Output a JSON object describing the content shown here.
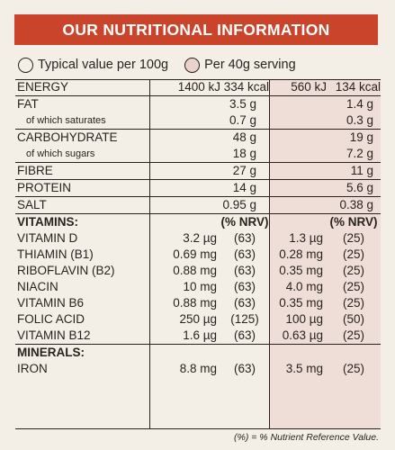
{
  "header": {
    "title": "OUR NUTRITIONAL INFORMATION"
  },
  "legend": {
    "per100": "Typical value per 100g",
    "serving": "Per 40g serving"
  },
  "rows": [
    {
      "kind": "energy",
      "label": "ENERGY",
      "v100a": "1400 kJ",
      "v100b": "334 kcal",
      "vsa": "560 kJ",
      "vsb": "134 kcal",
      "sep": false
    },
    {
      "kind": "main",
      "label": "FAT",
      "v100": "3.5 g",
      "vs": "1.4 g",
      "sep": true
    },
    {
      "kind": "sub",
      "label": "of which saturates",
      "v100": "0.7 g",
      "vs": "0.3 g",
      "sep": false
    },
    {
      "kind": "main",
      "label": "CARBOHYDRATE",
      "v100": "48 g",
      "vs": "19 g",
      "sep": true
    },
    {
      "kind": "sub",
      "label": "of which sugars",
      "v100": "18 g",
      "vs": "7.2 g",
      "sep": false
    },
    {
      "kind": "main",
      "label": "FIBRE",
      "v100": "27 g",
      "vs": "11 g",
      "sep": true
    },
    {
      "kind": "main",
      "label": "PROTEIN",
      "v100": "14 g",
      "vs": "5.6 g",
      "sep": true
    },
    {
      "kind": "main",
      "label": "SALT",
      "v100": "0.95 g",
      "vs": "0.38 g",
      "sep": true
    },
    {
      "kind": "section",
      "label": "VITAMINS:",
      "nrv100": "(% NRV)",
      "nrvs": "(% NRV)",
      "sep": true
    },
    {
      "kind": "vit",
      "label": "VITAMIN D",
      "v100": "3.2 µg",
      "p100": "(63)",
      "vs": "1.3 µg",
      "ps": "(25)",
      "sep": false
    },
    {
      "kind": "vit",
      "label": "THIAMIN (B1)",
      "v100": "0.69 mg",
      "p100": "(63)",
      "vs": "0.28 mg",
      "ps": "(25)",
      "sep": false
    },
    {
      "kind": "vit",
      "label": "RIBOFLAVIN (B2)",
      "v100": "0.88 mg",
      "p100": "(63)",
      "vs": "0.35 mg",
      "ps": "(25)",
      "sep": false
    },
    {
      "kind": "vit",
      "label": "NIACIN",
      "v100": "10 mg",
      "p100": "(63)",
      "vs": "4.0 mg",
      "ps": "(25)",
      "sep": false
    },
    {
      "kind": "vit",
      "label": "VITAMIN B6",
      "v100": "0.88 mg",
      "p100": "(63)",
      "vs": "0.35 mg",
      "ps": "(25)",
      "sep": false
    },
    {
      "kind": "vit",
      "label": "FOLIC ACID",
      "v100": "250 µg",
      "p100": "(125)",
      "vs": "100 µg",
      "ps": "(50)",
      "sep": false
    },
    {
      "kind": "vit",
      "label": "VITAMIN B12",
      "v100": "1.6 µg",
      "p100": "(63)",
      "vs": "0.63 µg",
      "ps": "(25)",
      "sep": false
    },
    {
      "kind": "section",
      "label": "MINERALS:",
      "nrv100": "",
      "nrvs": "",
      "sep": true
    },
    {
      "kind": "vit",
      "label": "IRON",
      "v100": "8.8 mg",
      "p100": "(63)",
      "vs": "3.5 mg",
      "ps": "(25)",
      "sep": false
    }
  ],
  "footnote": "(%) = % Nutrient Reference Value."
}
